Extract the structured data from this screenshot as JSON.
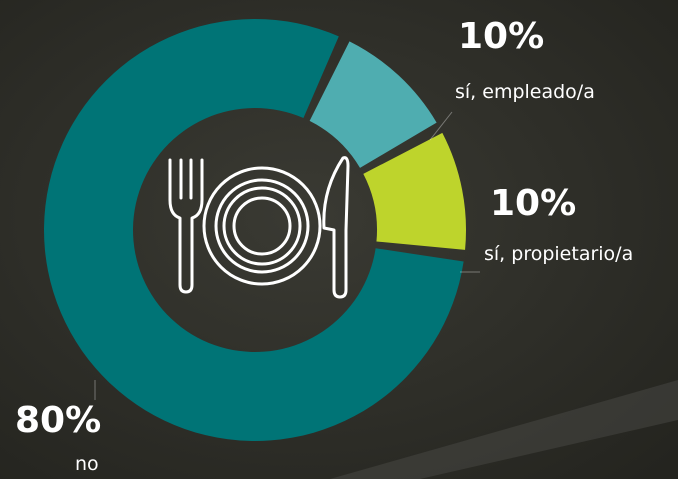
{
  "chart_data": {
    "type": "donut",
    "categories": [
      "sí, empleado/a",
      "sí, propietario/a",
      "no"
    ],
    "values": [
      10,
      10,
      80
    ],
    "value_labels": [
      "10%",
      "10%",
      "80%"
    ],
    "colors": [
      "#4fadb0",
      "#bed42c",
      "#007476"
    ]
  }
}
